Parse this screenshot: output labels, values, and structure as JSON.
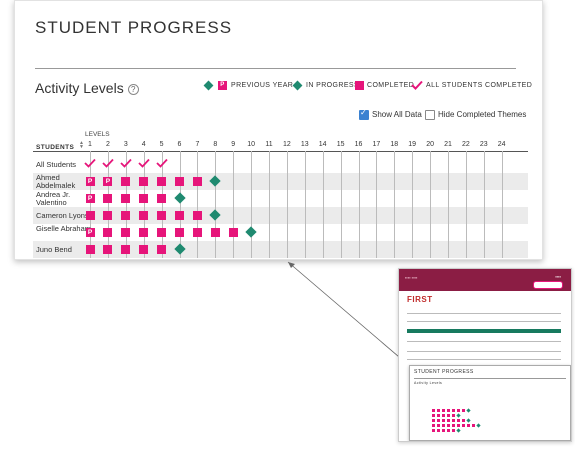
{
  "header": {
    "title": "STUDENT PROGRESS"
  },
  "section": {
    "title": "Activity Levels",
    "help_icon": "question-circle-icon"
  },
  "legend": {
    "p_badge": "P",
    "previous_year": "PREVIOUS YEAR",
    "in_progress": "IN PROGRESS",
    "completed": "COMPLETED",
    "all_completed": "ALL STUDENTS COMPLETED"
  },
  "options": {
    "show_all_data": {
      "label": "Show All Data",
      "checked": true
    },
    "hide_completed_themes": {
      "label": "Hide Completed Themes",
      "checked": false
    }
  },
  "table": {
    "levels_label": "LEVELS",
    "students_label": "STUDENTS",
    "levels": [
      "1",
      "2",
      "3",
      "4",
      "5",
      "6",
      "7",
      "8",
      "9",
      "10",
      "11",
      "12",
      "13",
      "14",
      "15",
      "16",
      "17",
      "18",
      "19",
      "20",
      "21",
      "22",
      "23",
      "24"
    ],
    "rows": [
      {
        "name": "All Students",
        "cells": [
          "check",
          "check",
          "check",
          "check",
          "check"
        ]
      },
      {
        "name": "Ahmed Abdelmalek",
        "cells": [
          "P",
          "P",
          "completed",
          "completed",
          "completed",
          "completed",
          "completed",
          "in-progress"
        ]
      },
      {
        "name": "Andrea Jr. Valentino",
        "cells": [
          "P",
          "completed",
          "completed",
          "completed",
          "completed",
          "in-progress"
        ]
      },
      {
        "name": "Cameron Lyons",
        "cells": [
          "completed",
          "completed",
          "completed",
          "completed",
          "completed",
          "completed",
          "completed",
          "in-progress"
        ]
      },
      {
        "name": "Giselle Abraham",
        "cells": [
          "P",
          "completed",
          "completed",
          "completed",
          "completed",
          "completed",
          "completed",
          "completed",
          "completed",
          "in-progress"
        ]
      },
      {
        "name": "Juno Bend",
        "cells": [
          "completed",
          "completed",
          "completed",
          "completed",
          "completed",
          "in-progress"
        ]
      }
    ]
  },
  "colors": {
    "completed": "#e6157a",
    "in_progress": "#1f8a70",
    "accent_blue": "#3b82d1",
    "brand": "#8b1d44"
  },
  "thumbnail": {
    "brand": "FIRST",
    "inner_title": "STUDENT PROGRESS",
    "inner_subtitle": "Activity Levels"
  }
}
